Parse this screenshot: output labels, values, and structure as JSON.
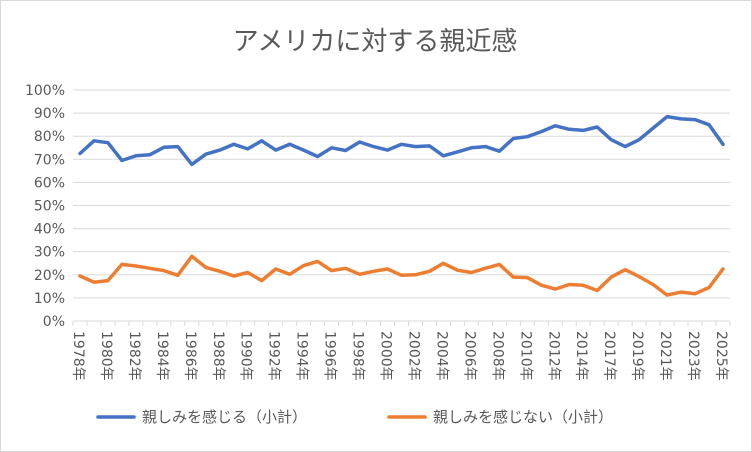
{
  "chart_data": {
    "type": "line",
    "title": "アメリカに対する親近感",
    "yticks": [
      "0%",
      "10%",
      "20%",
      "30%",
      "40%",
      "50%",
      "60%",
      "70%",
      "80%",
      "90%",
      "100%"
    ],
    "ylim": [
      0,
      100
    ],
    "grid": true,
    "legend": "bottom",
    "x": [
      "1978年",
      "1979年",
      "1980年",
      "1981年",
      "1982年",
      "1983年",
      "1984年",
      "1985年",
      "1986年",
      "1987年",
      "1988年",
      "1989年",
      "1990年",
      "1991年",
      "1992年",
      "1993年",
      "1994年",
      "1995年",
      "1996年",
      "1997年",
      "1998年",
      "1999年",
      "2000年",
      "2001年",
      "2002年",
      "2003年",
      "2004年",
      "2005年",
      "2006年",
      "2007年",
      "2008年",
      "2009年",
      "2010年",
      "2011年",
      "2012年",
      "2013年",
      "2014年",
      "2016年",
      "2017年",
      "2018年",
      "2019年",
      "2020年",
      "2021年",
      "2022年",
      "2023年",
      "2024年",
      "2025年"
    ],
    "xtick_labels": [
      "1978年",
      "1980年",
      "1982年",
      "1984年",
      "1986年",
      "1988年",
      "1990年",
      "1992年",
      "1994年",
      "1996年",
      "1998年",
      "2000年",
      "2002年",
      "2004年",
      "2006年",
      "2008年",
      "2010年",
      "2012年",
      "2014年",
      "2017年",
      "2019年",
      "2021年",
      "2023年",
      "2025年"
    ],
    "series": [
      {
        "name": "親しみを感じる（小計）",
        "color": "#4472c4",
        "values": [
          72.5,
          78.0,
          77.2,
          69.5,
          71.5,
          72.0,
          75.2,
          75.5,
          67.8,
          72.2,
          74.0,
          76.5,
          74.5,
          78.0,
          74.0,
          76.5,
          74.0,
          71.2,
          75.0,
          73.8,
          77.5,
          75.5,
          74.0,
          76.5,
          75.5,
          75.8,
          71.5,
          73.2,
          75.0,
          75.5,
          73.5,
          79.0,
          79.8,
          82.0,
          84.5,
          83.0,
          82.5,
          84.0,
          78.5,
          75.5,
          78.5,
          83.5,
          88.5,
          87.5,
          87.2,
          85.0,
          76.5
        ]
      },
      {
        "name": "親しみを感じない（小計）",
        "color": "#ed7d31",
        "values": [
          19.5,
          16.8,
          17.5,
          24.5,
          23.8,
          22.8,
          21.8,
          19.8,
          28.0,
          23.2,
          21.5,
          19.5,
          21.0,
          17.5,
          22.5,
          20.2,
          24.0,
          25.8,
          21.8,
          22.8,
          20.2,
          21.5,
          22.5,
          19.8,
          20.0,
          21.5,
          25.0,
          22.0,
          21.0,
          22.8,
          24.5,
          19.0,
          18.8,
          15.5,
          13.8,
          15.8,
          15.5,
          13.2,
          19.0,
          22.2,
          19.2,
          15.8,
          11.2,
          12.5,
          11.8,
          14.5,
          22.5
        ]
      }
    ]
  }
}
